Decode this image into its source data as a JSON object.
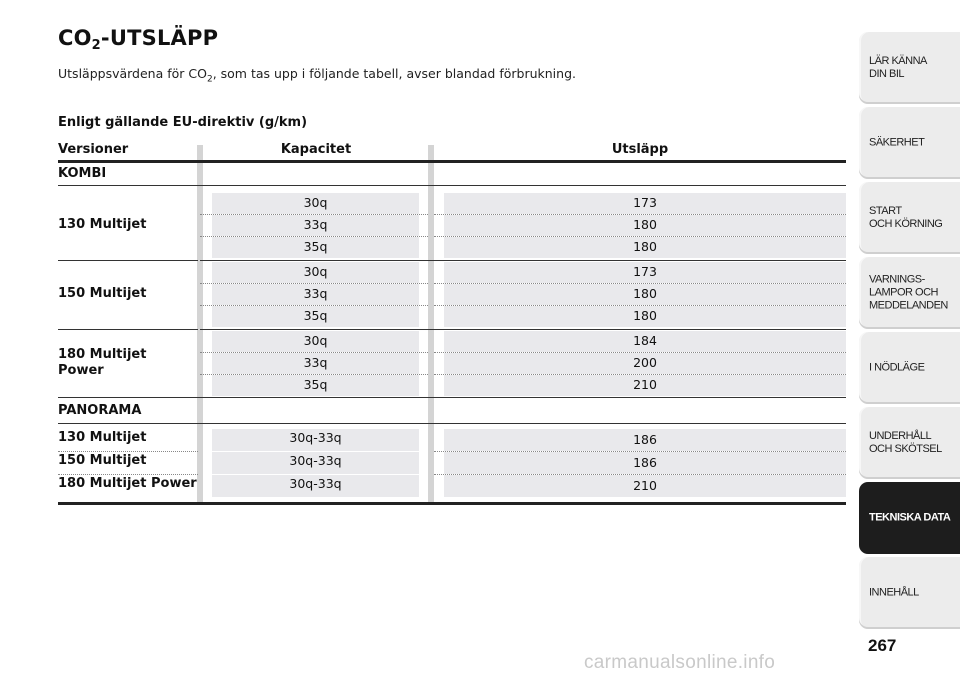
{
  "heading": {
    "prefix": "CO",
    "sub": "2",
    "suffix": "-UTSLÄPP"
  },
  "intro": {
    "before": "Utsläppsvärdena för CO",
    "sub": "2",
    "after": ", som tas upp i följande tabell, avser blandad förbrukning."
  },
  "table_subtitle": "Enligt gällande EU-direktiv (g/km)",
  "columns": {
    "versions": "Versioner",
    "capacity": "Kapacitet",
    "emissions": "Utsläpp"
  },
  "groups": {
    "kombi": "KOMBI",
    "panorama": "PANORAMA"
  },
  "kombi_rows": [
    {
      "version": "130 Multijet",
      "items": [
        {
          "cap": "30q",
          "emi": "173"
        },
        {
          "cap": "33q",
          "emi": "180"
        },
        {
          "cap": "35q",
          "emi": "180"
        }
      ]
    },
    {
      "version": "150 Multijet",
      "items": [
        {
          "cap": "30q",
          "emi": "173"
        },
        {
          "cap": "33q",
          "emi": "180"
        },
        {
          "cap": "35q",
          "emi": "180"
        }
      ]
    },
    {
      "version": "180 Multijet\nPower",
      "items": [
        {
          "cap": "30q",
          "emi": "184"
        },
        {
          "cap": "33q",
          "emi": "200"
        },
        {
          "cap": "35q",
          "emi": "210"
        }
      ]
    }
  ],
  "panorama_rows": [
    {
      "version": "130 Multijet",
      "cap": "30q-33q",
      "emi": "186"
    },
    {
      "version": "150 Multijet",
      "cap": "30q-33q",
      "emi": "186"
    },
    {
      "version": "180 Multijet Power",
      "cap": "30q-33q",
      "emi": "210"
    }
  ],
  "sidebar_tabs": [
    {
      "label": "LÄR KÄNNA\nDIN BIL",
      "active": false
    },
    {
      "label": "SÄKERHET",
      "active": false
    },
    {
      "label": "START\nOCH KÖRNING",
      "active": false
    },
    {
      "label": "VARNINGS-\nLAMPOR OCH\nMEDDELANDEN",
      "active": false
    },
    {
      "label": "I NÖDLÄGE",
      "active": false
    },
    {
      "label": "UNDERHÅLL\nOCH SKÖTSEL",
      "active": false
    },
    {
      "label": "TEKNISKA DATA",
      "active": true
    },
    {
      "label": "INNEHÅLL",
      "active": false
    }
  ],
  "page_number": "267",
  "watermark": "carmanualsonline.info"
}
